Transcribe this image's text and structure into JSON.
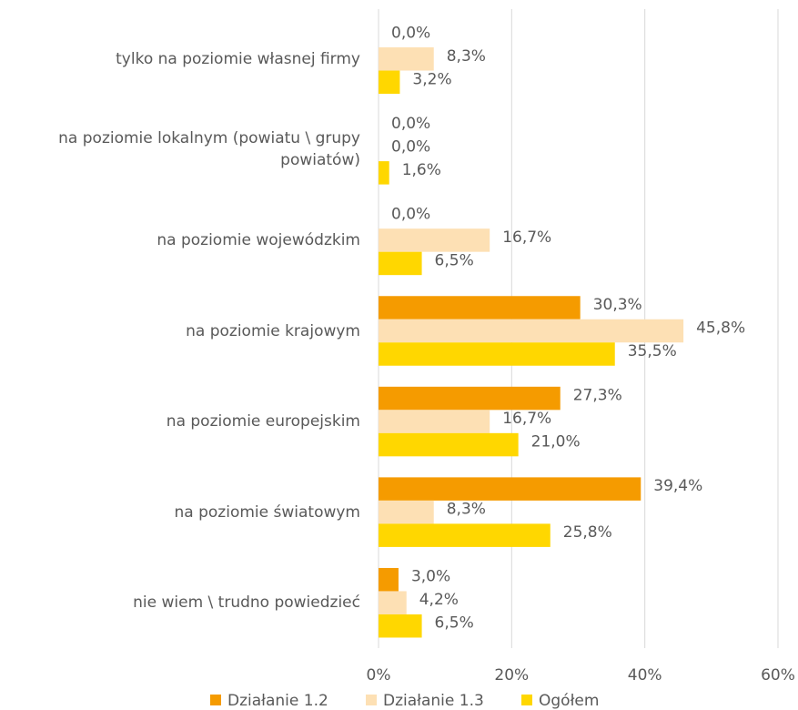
{
  "chart_data": {
    "type": "hbar",
    "categories": [
      "tylko na poziomie własnej firmy",
      "na poziomie lokalnym (powiatu \\ grupy powiatów)",
      "na poziomie wojewódzkim",
      "na poziomie krajowym",
      "na poziomie europejskim",
      "na poziomie światowym",
      "nie wiem \\ trudno powiedzieć"
    ],
    "series": [
      {
        "name": "Działanie 1.2",
        "color": "#f59b00",
        "values": [
          0.0,
          0.0,
          0.0,
          30.3,
          27.3,
          39.4,
          3.0
        ],
        "value_labels": [
          "0,0%",
          "0,0%",
          "0,0%",
          "30,3%",
          "27,3%",
          "39,4%",
          "3,0%"
        ]
      },
      {
        "name": "Działanie 1.3",
        "color": "#fde0b4",
        "values": [
          8.3,
          0.0,
          16.7,
          45.8,
          16.7,
          8.3,
          4.2
        ],
        "value_labels": [
          "8,3%",
          "0,0%",
          "16,7%",
          "45,8%",
          "16,7%",
          "8,3%",
          "4,2%"
        ]
      },
      {
        "name": "Ogółem",
        "color": "#ffd700",
        "values": [
          3.2,
          1.6,
          6.5,
          35.5,
          21.0,
          25.8,
          6.5
        ],
        "value_labels": [
          "3,2%",
          "1,6%",
          "6,5%",
          "35,5%",
          "21,0%",
          "25,8%",
          "6,5%"
        ]
      }
    ],
    "xlim": [
      0,
      60
    ],
    "xticks": [
      {
        "value": 0,
        "label": "0%"
      },
      {
        "value": 20,
        "label": "20%"
      },
      {
        "value": 40,
        "label": "40%"
      },
      {
        "value": 60,
        "label": "60%"
      }
    ],
    "grid": true,
    "legend": "bottom"
  }
}
